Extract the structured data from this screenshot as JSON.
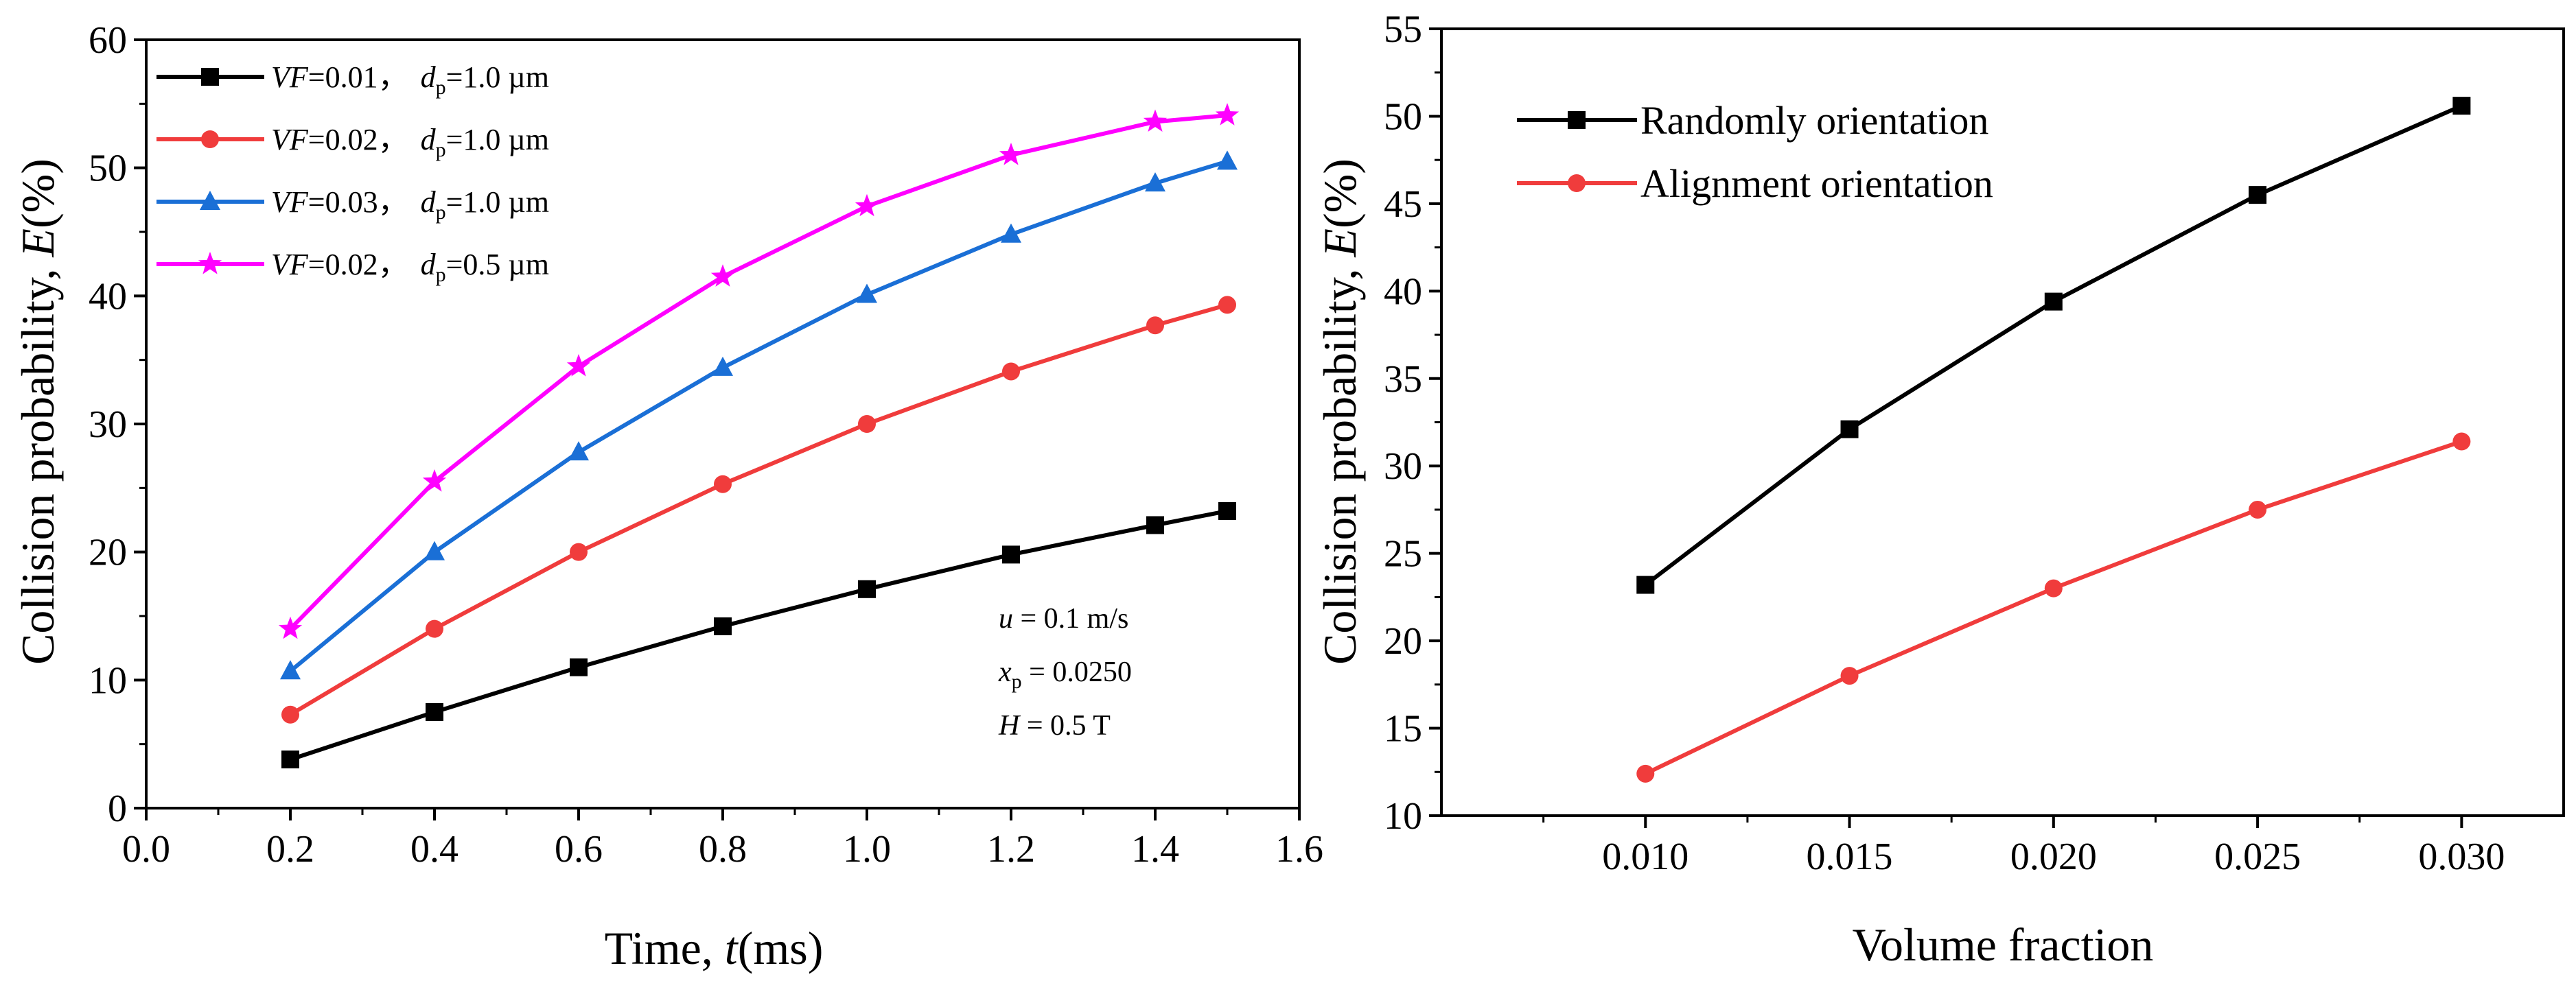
{
  "chart_data": [
    {
      "type": "line",
      "xlabel_prefix": "Time, ",
      "xlabel_var": "t",
      "xlabel_suffix": "(ms)",
      "ylabel_prefix": "Collision probability, ",
      "ylabel_var": "E",
      "ylabel_suffix": "(%)",
      "xlim": [
        0.0,
        1.6
      ],
      "ylim": [
        0,
        60
      ],
      "xticks": [
        "0.0",
        "0.2",
        "0.4",
        "0.6",
        "0.8",
        "1.0",
        "1.2",
        "1.4",
        "1.6"
      ],
      "yticks": [
        "0",
        "10",
        "20",
        "30",
        "40",
        "50",
        "60"
      ],
      "x": [
        0.2,
        0.4,
        0.6,
        0.8,
        1.0,
        1.2,
        1.4,
        1.5
      ],
      "series": [
        {
          "name": "VF=0.01, dp=1.0 µm",
          "vf_label": "VF",
          "vf_value": "=0.01，",
          "dp_label": "d",
          "dp_sub": "p",
          "dp_value": "=1.0 µm",
          "color": "#000000",
          "marker": "square",
          "values": [
            3.8,
            7.5,
            11.0,
            14.2,
            17.1,
            19.8,
            22.1,
            23.2
          ]
        },
        {
          "name": "VF=0.02, dp=1.0 µm",
          "vf_label": "VF",
          "vf_value": "=0.02，",
          "dp_label": "d",
          "dp_sub": "p",
          "dp_value": "=1.0 µm",
          "color": "#f03c3c",
          "marker": "circle",
          "values": [
            7.3,
            14.0,
            20.0,
            25.3,
            30.0,
            34.1,
            37.7,
            39.3
          ]
        },
        {
          "name": "VF=0.03, dp=1.0 µm",
          "vf_label": "VF",
          "vf_value": "=0.03，",
          "dp_label": "d",
          "dp_sub": "p",
          "dp_value": "=1.0 µm",
          "color": "#1a6fd6",
          "marker": "triangle",
          "values": [
            10.7,
            20.0,
            27.8,
            34.4,
            40.1,
            44.8,
            48.8,
            50.5
          ]
        },
        {
          "name": "VF=0.02, dp=0.5 µm",
          "vf_label": "VF",
          "vf_value": "=0.02，",
          "dp_label": "d",
          "dp_sub": "p",
          "dp_value": "=0.5 µm",
          "color": "#ff00ff",
          "marker": "star",
          "values": [
            14.0,
            25.5,
            34.5,
            41.5,
            47.0,
            51.0,
            53.6,
            54.1
          ]
        }
      ],
      "annotations": [
        {
          "var": "u",
          "sub": "",
          "text": " = 0.1 m/s"
        },
        {
          "var": "x",
          "sub": "p",
          "text": " = 0.0250"
        },
        {
          "var": "H",
          "sub": "",
          "text": " = 0.5 T"
        }
      ]
    },
    {
      "type": "line",
      "xlabel": "Volume fraction",
      "ylabel_prefix": "Collision probability, ",
      "ylabel_var": "E",
      "ylabel_suffix": "(%)",
      "xlim": [
        0.005,
        0.0325
      ],
      "ylim": [
        10,
        55
      ],
      "xtick_values": [
        0.01,
        0.015,
        0.02,
        0.025,
        0.03
      ],
      "xticks": [
        "0.010",
        "0.015",
        "0.020",
        "0.025",
        "0.030"
      ],
      "yticks": [
        "10",
        "15",
        "20",
        "25",
        "30",
        "35",
        "40",
        "45",
        "50",
        "55"
      ],
      "x": [
        0.01,
        0.015,
        0.02,
        0.025,
        0.03
      ],
      "series": [
        {
          "name": "Randomly orientation",
          "color": "#000000",
          "marker": "square",
          "values": [
            23.2,
            32.1,
            39.4,
            45.5,
            50.6
          ]
        },
        {
          "name": "Alignment orientation",
          "color": "#f03c3c",
          "marker": "circle",
          "values": [
            12.4,
            18.0,
            23.0,
            27.5,
            31.4
          ]
        }
      ]
    }
  ]
}
